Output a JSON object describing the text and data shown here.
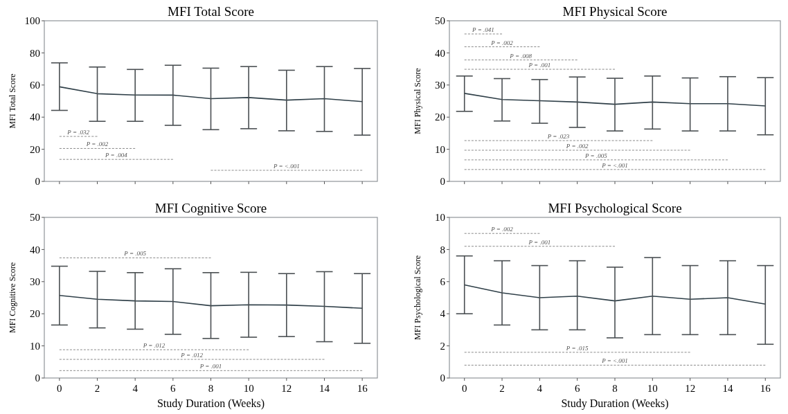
{
  "chart_data": [
    {
      "type": "line",
      "title": "MFI Total Score",
      "ylabel": "MFI Total Score",
      "tick_labels": "y",
      "xlim": [
        -0.8,
        16.8
      ],
      "xticks": [
        0,
        2,
        4,
        6,
        8,
        10,
        12,
        14,
        16
      ],
      "ylim": [
        0,
        100
      ],
      "yticks": [
        0,
        20,
        40,
        60,
        80,
        100
      ],
      "series": [
        {
          "color": "#2f3f48",
          "x": [
            0,
            2,
            4,
            6,
            8,
            10,
            12,
            14,
            16
          ],
          "values": [
            58.9,
            54.6,
            53.8,
            53.7,
            51.5,
            52.2,
            50.6,
            51.5,
            49.7
          ],
          "errors": [
            [
              44.2,
              73.8
            ],
            [
              37.4,
              71.2
            ],
            [
              37.4,
              69.7
            ],
            [
              34.9,
              72.3
            ],
            [
              32.2,
              70.5
            ],
            [
              32.8,
              71.5
            ],
            [
              31.5,
              69.2
            ],
            [
              31.1,
              71.5
            ],
            [
              28.8,
              70.3
            ]
          ]
        },
        {
          "type": "line",
          "color": "#8a8a8a",
          "line_style": "dashed",
          "x": [
            0,
            2
          ],
          "values": [
            28,
            28
          ]
        },
        {
          "type": "line",
          "color": "#8a8a8a",
          "line_style": "dashed",
          "x": [
            0,
            4
          ],
          "values": [
            20.5,
            20.5
          ]
        },
        {
          "type": "line",
          "color": "#8a8a8a",
          "line_style": "dashed",
          "x": [
            0,
            6
          ],
          "values": [
            13.7,
            13.7
          ]
        },
        {
          "type": "line",
          "color": "#8a8a8a",
          "line_style": "dashed",
          "x": [
            8,
            16
          ],
          "values": [
            6.9,
            6.9
          ]
        }
      ],
      "annotations": [
        {
          "text": "P = .032",
          "x": 1,
          "y": 28
        },
        {
          "text": "P = .002",
          "x": 2,
          "y": 20.5
        },
        {
          "text": "P = .004",
          "x": 3,
          "y": 13.7
        },
        {
          "text": "P = <.001",
          "x": 12,
          "y": 6.9
        }
      ]
    },
    {
      "type": "line",
      "title": "MFI Physical Score",
      "ylabel": "MFI Physical Score",
      "tick_labels": "y",
      "xlim": [
        -0.8,
        16.8
      ],
      "xticks": [
        0,
        2,
        4,
        6,
        8,
        10,
        12,
        14,
        16
      ],
      "ylim": [
        0,
        50
      ],
      "yticks": [
        0,
        10,
        20,
        30,
        40,
        50
      ],
      "series": [
        {
          "color": "#2f3f48",
          "x": [
            0,
            2,
            4,
            6,
            8,
            10,
            12,
            14,
            16
          ],
          "values": [
            27.4,
            25.5,
            25.1,
            24.7,
            24.0,
            24.7,
            24.2,
            24.2,
            23.5
          ],
          "errors": [
            [
              21.8,
              32.8
            ],
            [
              18.8,
              32.0
            ],
            [
              18.1,
              31.7
            ],
            [
              16.8,
              32.5
            ],
            [
              15.7,
              32.1
            ],
            [
              16.3,
              32.8
            ],
            [
              15.7,
              32.2
            ],
            [
              15.7,
              32.6
            ],
            [
              14.5,
              32.3
            ]
          ]
        },
        {
          "type": "line",
          "color": "#8a8a8a",
          "line_style": "dashed",
          "x": [
            0,
            2
          ],
          "values": [
            45.9,
            45.9
          ]
        },
        {
          "type": "line",
          "color": "#8a8a8a",
          "line_style": "dashed",
          "x": [
            0,
            4
          ],
          "values": [
            41.9,
            41.9
          ]
        },
        {
          "type": "line",
          "color": "#8a8a8a",
          "line_style": "dashed",
          "x": [
            0,
            6
          ],
          "values": [
            37.8,
            37.8
          ]
        },
        {
          "type": "line",
          "color": "#8a8a8a",
          "line_style": "dashed",
          "x": [
            0,
            8
          ],
          "values": [
            34.9,
            34.9
          ]
        },
        {
          "type": "line",
          "color": "#8a8a8a",
          "line_style": "dashed",
          "x": [
            0,
            10
          ],
          "values": [
            12.7,
            12.7
          ]
        },
        {
          "type": "line",
          "color": "#8a8a8a",
          "line_style": "dashed",
          "x": [
            0,
            12
          ],
          "values": [
            9.7,
            9.7
          ]
        },
        {
          "type": "line",
          "color": "#8a8a8a",
          "line_style": "dashed",
          "x": [
            0,
            14
          ],
          "values": [
            6.7,
            6.7
          ]
        },
        {
          "type": "line",
          "color": "#8a8a8a",
          "line_style": "dashed",
          "x": [
            0,
            16
          ],
          "values": [
            3.7,
            3.7
          ]
        }
      ],
      "annotations": [
        {
          "text": "P = .041",
          "x": 1,
          "y": 45.9
        },
        {
          "text": "P = .002",
          "x": 2,
          "y": 41.9
        },
        {
          "text": "P = .008",
          "x": 3,
          "y": 37.8
        },
        {
          "text": "P = .001",
          "x": 4,
          "y": 34.9
        },
        {
          "text": "P = .023",
          "x": 5,
          "y": 12.7
        },
        {
          "text": "P = .002",
          "x": 6,
          "y": 9.7
        },
        {
          "text": "P = .005",
          "x": 7,
          "y": 6.7
        },
        {
          "text": "P = <.001",
          "x": 8,
          "y": 3.7
        }
      ]
    },
    {
      "type": "line",
      "title": "MFI Cognitive Score",
      "ylabel": "MFI Cognitive Score",
      "xlabel": "Study Duration (Weeks)",
      "xlim": [
        -0.8,
        16.8
      ],
      "xticks": [
        0,
        2,
        4,
        6,
        8,
        10,
        12,
        14,
        16
      ],
      "ylim": [
        0,
        50
      ],
      "yticks": [
        0,
        10,
        20,
        30,
        40,
        50
      ],
      "series": [
        {
          "color": "#2f3f48",
          "x": [
            0,
            2,
            4,
            6,
            8,
            10,
            12,
            14,
            16
          ],
          "values": [
            25.7,
            24.5,
            24.0,
            23.8,
            22.5,
            22.8,
            22.7,
            22.3,
            21.7
          ],
          "errors": [
            [
              16.5,
              34.8
            ],
            [
              15.6,
              33.2
            ],
            [
              15.2,
              32.8
            ],
            [
              13.6,
              34.0
            ],
            [
              12.3,
              32.8
            ],
            [
              12.7,
              32.9
            ],
            [
              12.9,
              32.5
            ],
            [
              11.3,
              33.1
            ],
            [
              10.8,
              32.5
            ]
          ]
        },
        {
          "type": "line",
          "color": "#8a8a8a",
          "line_style": "dashed",
          "x": [
            0,
            8
          ],
          "values": [
            37.4,
            37.4
          ]
        },
        {
          "type": "line",
          "color": "#8a8a8a",
          "line_style": "dashed",
          "x": [
            0,
            10
          ],
          "values": [
            8.8,
            8.8
          ]
        },
        {
          "type": "line",
          "color": "#8a8a8a",
          "line_style": "dashed",
          "x": [
            0,
            14
          ],
          "values": [
            5.8,
            5.8
          ]
        },
        {
          "type": "line",
          "color": "#8a8a8a",
          "line_style": "dashed",
          "x": [
            0,
            16
          ],
          "values": [
            2.3,
            2.3
          ]
        }
      ],
      "annotations": [
        {
          "text": "P = .005",
          "x": 4,
          "y": 37.4
        },
        {
          "text": "P = .012",
          "x": 5,
          "y": 8.8
        },
        {
          "text": "P = .012",
          "x": 7,
          "y": 5.8
        },
        {
          "text": "P = .001",
          "x": 8,
          "y": 2.3
        }
      ]
    },
    {
      "type": "line",
      "title": "MFI Psychological Score",
      "ylabel": "MFI Psychological Score",
      "xlabel": "Study Duration (Weeks)",
      "xlim": [
        -0.8,
        16.8
      ],
      "xticks": [
        0,
        2,
        4,
        6,
        8,
        10,
        12,
        14,
        16
      ],
      "ylim": [
        0,
        10
      ],
      "yticks": [
        0,
        2,
        4,
        6,
        8,
        10
      ],
      "series": [
        {
          "color": "#2f3f48",
          "x": [
            0,
            2,
            4,
            6,
            8,
            10,
            12,
            14,
            16
          ],
          "values": [
            5.8,
            5.3,
            5.0,
            5.1,
            4.8,
            5.1,
            4.9,
            5.0,
            4.6
          ],
          "errors": [
            [
              4.0,
              7.6
            ],
            [
              3.3,
              7.3
            ],
            [
              3.0,
              7.0
            ],
            [
              3.0,
              7.3
            ],
            [
              2.5,
              6.9
            ],
            [
              2.7,
              7.5
            ],
            [
              2.7,
              7.0
            ],
            [
              2.7,
              7.3
            ],
            [
              2.1,
              7.0
            ]
          ]
        },
        {
          "type": "line",
          "color": "#8a8a8a",
          "line_style": "dashed",
          "x": [
            0,
            4
          ],
          "values": [
            9.0,
            9.0
          ]
        },
        {
          "type": "line",
          "color": "#8a8a8a",
          "line_style": "dashed",
          "x": [
            0,
            8
          ],
          "values": [
            8.2,
            8.2
          ]
        },
        {
          "type": "line",
          "color": "#8a8a8a",
          "line_style": "dashed",
          "x": [
            0,
            12
          ],
          "values": [
            1.6,
            1.6
          ]
        },
        {
          "type": "line",
          "color": "#8a8a8a",
          "line_style": "dashed",
          "x": [
            0,
            16
          ],
          "values": [
            0.8,
            0.8
          ]
        }
      ],
      "annotations": [
        {
          "text": "P = .002",
          "x": 2,
          "y": 9.0
        },
        {
          "text": "P = .001",
          "x": 4,
          "y": 8.2
        },
        {
          "text": "P = .015",
          "x": 6,
          "y": 1.6
        },
        {
          "text": "P = <.001",
          "x": 8,
          "y": 0.8
        }
      ]
    }
  ]
}
